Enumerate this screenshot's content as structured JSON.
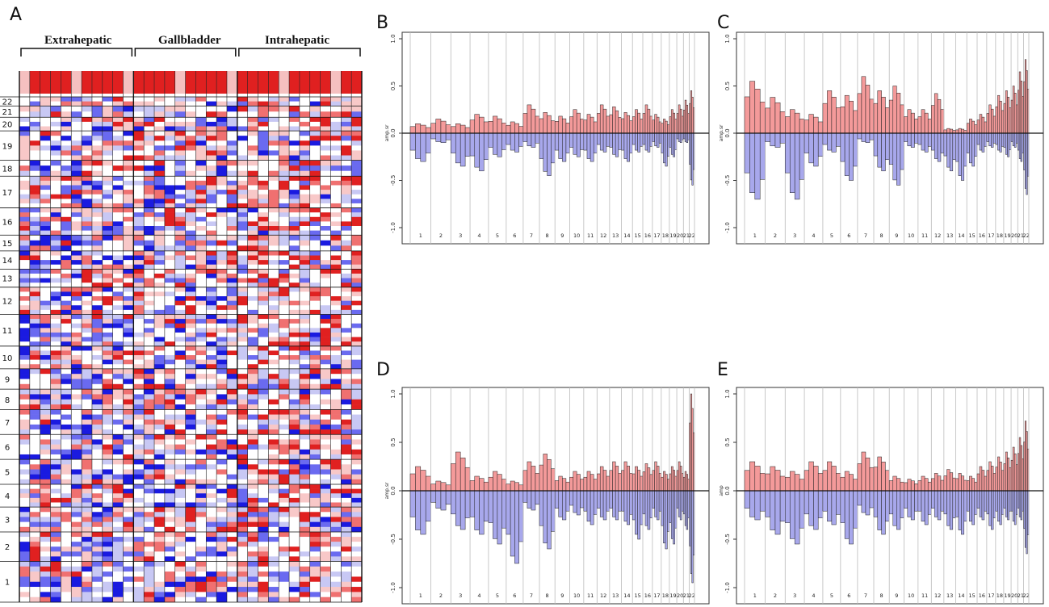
{
  "panels": {
    "A": "A",
    "B": "B",
    "C": "C",
    "D": "D",
    "E": "E"
  },
  "colors": {
    "gain": "#f49a9a",
    "loss": "#a8a8ec",
    "heat_red": "#e02020",
    "heat_blue": "#1a1ae0",
    "heat_white": "#ffffff"
  },
  "chart_data": [
    {
      "panel": "A",
      "type": "heatmap",
      "groups": [
        {
          "label": "Extrahepatic",
          "columns": 11
        },
        {
          "label": "Gallbladder",
          "columns": 10
        },
        {
          "label": "Intrahepatic",
          "columns": 12
        }
      ],
      "rows": [
        "22",
        "21",
        "20",
        "19",
        "18",
        "17",
        "16",
        "15",
        "14",
        "13",
        "12",
        "11",
        "10",
        "9",
        "8",
        "7",
        "6",
        "5",
        "4",
        "3",
        "2",
        "1"
      ],
      "top_bar": "red",
      "color_scale": [
        "loss",
        "neutral",
        "gain"
      ]
    },
    {
      "panel": "B",
      "type": "area",
      "ylabel": "amp.sr",
      "ylim": [
        -1.0,
        1.0
      ],
      "yticks": [
        "1.0",
        "0.5",
        "0.0",
        "-0.5",
        "-1.0"
      ],
      "xtick_labels": [
        "1",
        "2",
        "3",
        "4",
        "5",
        "6",
        "7",
        "8",
        "9",
        "10",
        "11",
        "12",
        "13",
        "14",
        "15",
        "16",
        "17",
        "18",
        "19",
        "20",
        "21",
        "22"
      ],
      "series": [
        {
          "name": "gain",
          "values": [
            0.1,
            0.15,
            0.1,
            0.2,
            0.18,
            0.12,
            0.3,
            0.22,
            0.18,
            0.25,
            0.2,
            0.3,
            0.28,
            0.22,
            0.25,
            0.3,
            0.2,
            0.15,
            0.25,
            0.3,
            0.35,
            0.45
          ]
        },
        {
          "name": "loss",
          "values": [
            -0.3,
            -0.1,
            -0.35,
            -0.4,
            -0.25,
            -0.2,
            -0.15,
            -0.45,
            -0.3,
            -0.25,
            -0.3,
            -0.2,
            -0.25,
            -0.3,
            -0.2,
            -0.2,
            -0.15,
            -0.35,
            -0.25,
            -0.1,
            -0.1,
            -0.55
          ]
        }
      ]
    },
    {
      "panel": "C",
      "type": "area",
      "ylabel": "amp.sr",
      "ylim": [
        -1.0,
        1.0
      ],
      "yticks": [
        "1.0",
        "0.5",
        "0.0",
        "-0.5",
        "-1.0"
      ],
      "xtick_labels": [
        "1",
        "2",
        "3",
        "4",
        "5",
        "6",
        "7",
        "8",
        "9",
        "10",
        "11",
        "12",
        "13",
        "14",
        "15",
        "16",
        "17",
        "18",
        "19",
        "20",
        "21",
        "22"
      ],
      "series": [
        {
          "name": "gain",
          "values": [
            0.55,
            0.38,
            0.25,
            0.2,
            0.45,
            0.4,
            0.6,
            0.45,
            0.5,
            0.25,
            0.25,
            0.42,
            0.05,
            0.05,
            0.15,
            0.2,
            0.3,
            0.4,
            0.45,
            0.5,
            0.65,
            0.78
          ]
        },
        {
          "name": "loss",
          "values": [
            -0.7,
            -0.15,
            -0.7,
            -0.35,
            -0.2,
            -0.5,
            -0.1,
            -0.4,
            -0.55,
            -0.15,
            -0.2,
            -0.3,
            -0.4,
            -0.5,
            -0.35,
            -0.2,
            -0.15,
            -0.2,
            -0.25,
            -0.15,
            -0.3,
            -0.65
          ]
        }
      ]
    },
    {
      "panel": "D",
      "type": "area",
      "ylabel": "amp.sr",
      "ylim": [
        -1.0,
        1.0
      ],
      "yticks": [
        "1.0",
        "0.5",
        "0.0",
        "-0.5",
        "-1.0"
      ],
      "xtick_labels": [
        "1",
        "2",
        "3",
        "4",
        "5",
        "6",
        "7",
        "8",
        "9",
        "10",
        "11",
        "12",
        "13",
        "14",
        "15",
        "16",
        "17",
        "18",
        "19",
        "20",
        "21",
        "22"
      ],
      "series": [
        {
          "name": "gain",
          "values": [
            0.25,
            0.1,
            0.4,
            0.15,
            0.2,
            0.1,
            0.3,
            0.38,
            0.15,
            0.2,
            0.2,
            0.25,
            0.3,
            0.3,
            0.25,
            0.28,
            0.3,
            0.2,
            0.25,
            0.3,
            0.2,
            1.0
          ]
        },
        {
          "name": "loss",
          "values": [
            -0.45,
            -0.2,
            -0.4,
            -0.45,
            -0.55,
            -0.75,
            -0.2,
            -0.6,
            -0.3,
            -0.25,
            -0.35,
            -0.3,
            -0.3,
            -0.35,
            -0.5,
            -0.4,
            -0.3,
            -0.6,
            -0.55,
            -0.3,
            -0.4,
            -0.95
          ]
        }
      ]
    },
    {
      "panel": "E",
      "type": "area",
      "ylabel": "amp",
      "ylim": [
        -1.0,
        1.0
      ],
      "yticks": [
        "1.0",
        "0.5",
        "0.0",
        "-0.5",
        "-1.0"
      ],
      "xtick_labels": [
        "1",
        "2",
        "3",
        "4",
        "5",
        "6",
        "7",
        "8",
        "9",
        "10",
        "11",
        "12",
        "13",
        "14",
        "15",
        "16",
        "17",
        "18",
        "19",
        "20",
        "21",
        "22"
      ],
      "series": [
        {
          "name": "gain",
          "values": [
            0.3,
            0.25,
            0.2,
            0.3,
            0.3,
            0.2,
            0.4,
            0.35,
            0.15,
            0.12,
            0.15,
            0.18,
            0.22,
            0.18,
            0.15,
            0.25,
            0.3,
            0.35,
            0.4,
            0.45,
            0.55,
            0.72
          ]
        },
        {
          "name": "loss",
          "values": [
            -0.3,
            -0.45,
            -0.55,
            -0.4,
            -0.35,
            -0.55,
            -0.25,
            -0.45,
            -0.4,
            -0.3,
            -0.35,
            -0.3,
            -0.4,
            -0.45,
            -0.35,
            -0.3,
            -0.4,
            -0.35,
            -0.3,
            -0.35,
            -0.3,
            -0.65
          ]
        }
      ]
    }
  ]
}
